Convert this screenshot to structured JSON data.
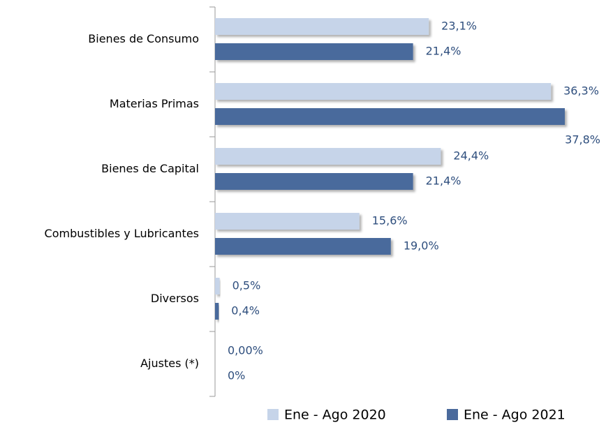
{
  "chart_data": {
    "type": "barh",
    "categories": [
      "Bienes de Consumo",
      "Materias Primas",
      "Bienes de Capital",
      "Combustibles y Lubricantes",
      "Diversos",
      "Ajustes (*)"
    ],
    "series": [
      {
        "name": "Ene - Ago 2020",
        "color": "#c6d4e9",
        "values": [
          23.1,
          36.3,
          24.4,
          15.6,
          0.5,
          0
        ],
        "value_labels": [
          "23,1%",
          "36,3%",
          "24,4%",
          "15,6%",
          "0,5%",
          "0,00%"
        ]
      },
      {
        "name": "Ene - Ago 2021",
        "color": "#4a6a9c",
        "values": [
          21.4,
          37.8,
          21.4,
          19.0,
          0.4,
          0
        ],
        "value_labels": [
          "21,4%",
          "37,8%",
          "21,4%",
          "19,0%",
          "0,4%",
          "0%"
        ]
      }
    ],
    "legend": "bottom"
  }
}
